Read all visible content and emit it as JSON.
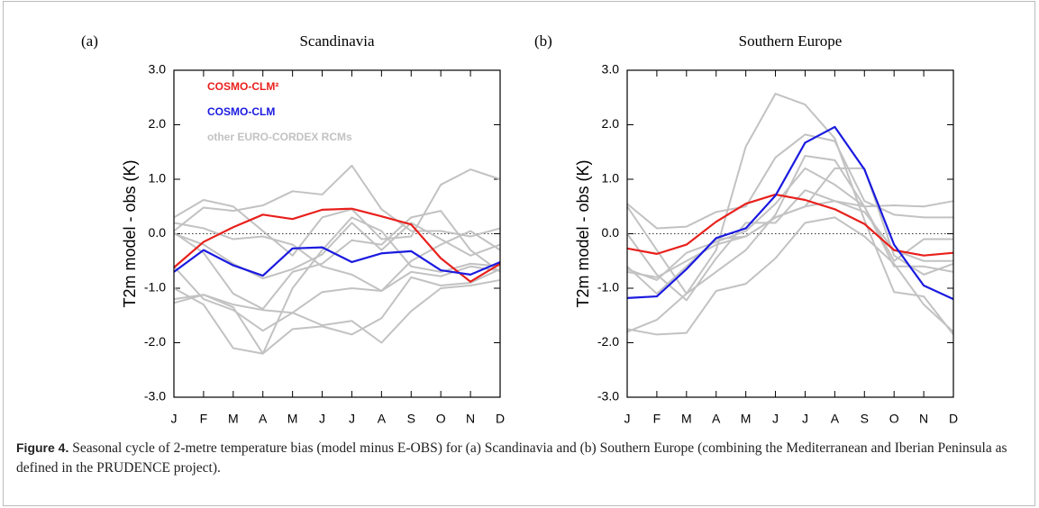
{
  "chart_data": [
    {
      "type": "line",
      "panel_label": "(a)",
      "title": "Scandinavia",
      "y_label": "T2m model - obs (K)",
      "categories": [
        "J",
        "F",
        "M",
        "A",
        "M",
        "J",
        "J",
        "A",
        "S",
        "O",
        "N",
        "D"
      ],
      "ylim": [
        -3,
        3
      ],
      "yticks": [
        {
          "value": -3,
          "label": "-3.0"
        },
        {
          "value": -2,
          "label": "-2.0"
        },
        {
          "value": -1,
          "label": "-1.0"
        },
        {
          "value": 0,
          "label": "0.0"
        },
        {
          "value": 1,
          "label": "1.0"
        },
        {
          "value": 2,
          "label": "2.0"
        },
        {
          "value": 3,
          "label": "3.0"
        }
      ],
      "series": [
        {
          "name": "COSMO-CLM²",
          "color": "#e8201c",
          "values": [
            -0.62,
            -0.15,
            0.12,
            0.35,
            0.27,
            0.44,
            0.46,
            0.32,
            0.17,
            -0.45,
            -0.88,
            -0.55
          ]
        },
        {
          "name": "COSMO-CLM",
          "color": "#1a1ae0",
          "values": [
            -0.7,
            -0.3,
            -0.58,
            -0.77,
            -0.27,
            -0.25,
            -0.52,
            -0.36,
            -0.32,
            -0.67,
            -0.75,
            -0.52
          ]
        },
        {
          "name": "other EURO-CORDEX RCMs",
          "color": "#c2c2c2",
          "lines": [
            [
              0.3,
              0.62,
              0.5,
              0.05,
              -0.4,
              0.3,
              0.45,
              -0.1,
              -0.05,
              0.9,
              1.18,
              1.0
            ],
            [
              0.05,
              0.48,
              0.42,
              0.52,
              0.78,
              0.72,
              1.25,
              0.45,
              0.05,
              0.05,
              -0.05,
              0.1
            ],
            [
              -1.27,
              -1.12,
              -1.3,
              -1.4,
              -1.45,
              -1.68,
              -1.6,
              -2.0,
              -1.42,
              -1.0,
              -0.95,
              -0.85
            ],
            [
              -1.0,
              -1.3,
              -2.1,
              -2.2,
              -1.75,
              -1.7,
              -1.85,
              -1.55,
              -0.8,
              -0.95,
              -0.9,
              -0.65
            ],
            [
              -0.6,
              -1.2,
              -1.4,
              -1.78,
              -1.45,
              -1.07,
              -1.0,
              -1.05,
              -0.7,
              -0.78,
              -0.6,
              -0.68
            ],
            [
              0.02,
              -0.35,
              -1.1,
              -1.38,
              -0.7,
              -0.55,
              -0.12,
              -0.2,
              0.3,
              0.42,
              -0.3,
              -0.7
            ],
            [
              0.0,
              -0.2,
              -0.55,
              -0.82,
              -0.65,
              -0.38,
              0.2,
              -0.3,
              0.2,
              -0.1,
              -0.4,
              -0.2
            ],
            [
              -1.2,
              -1.12,
              -1.35,
              -2.2,
              -1.0,
              -0.3,
              0.3,
              0.05,
              -0.6,
              -0.7,
              -0.55,
              -0.6
            ],
            [
              0.2,
              0.1,
              -0.1,
              -0.05,
              -0.2,
              -0.6,
              -0.75,
              -1.05,
              -0.5,
              -0.2,
              0.05,
              -0.3
            ]
          ]
        }
      ]
    },
    {
      "type": "line",
      "panel_label": "(b)",
      "title": "Southern Europe",
      "y_label": "T2m model - obs (K)",
      "categories": [
        "J",
        "F",
        "M",
        "A",
        "M",
        "J",
        "J",
        "A",
        "S",
        "O",
        "N",
        "D"
      ],
      "ylim": [
        -3,
        3
      ],
      "yticks": [
        {
          "value": -3,
          "label": "-3.0"
        },
        {
          "value": -2,
          "label": "-2.0"
        },
        {
          "value": -1,
          "label": "-1.0"
        },
        {
          "value": 0,
          "label": "0.0"
        },
        {
          "value": 1,
          "label": "1.0"
        },
        {
          "value": 2,
          "label": "2.0"
        },
        {
          "value": 3,
          "label": "3.0"
        }
      ],
      "series": [
        {
          "color": "#e8201c",
          "values": [
            -0.27,
            -0.37,
            -0.2,
            0.22,
            0.55,
            0.72,
            0.62,
            0.45,
            0.18,
            -0.3,
            -0.4,
            -0.35
          ]
        },
        {
          "color": "#1a1ae0",
          "values": [
            -1.18,
            -1.15,
            -0.65,
            -0.08,
            0.1,
            0.7,
            1.67,
            1.96,
            1.18,
            -0.2,
            -0.95,
            -1.2
          ]
        },
        {
          "color": "#c2c2c2",
          "lines": [
            [
              -1.8,
              -1.58,
              -1.1,
              -0.3,
              1.6,
              2.57,
              2.37,
              1.75,
              0.25,
              -1.07,
              -1.15,
              -1.85
            ],
            [
              0.55,
              0.1,
              0.13,
              0.4,
              0.5,
              1.4,
              1.82,
              1.7,
              0.6,
              0.35,
              0.3,
              0.3
            ],
            [
              -1.75,
              -1.85,
              -1.82,
              -1.05,
              -0.92,
              -0.45,
              0.2,
              0.3,
              -0.05,
              -0.55,
              -1.3,
              -1.8
            ],
            [
              0.5,
              -0.3,
              -1.1,
              -0.7,
              -0.3,
              0.35,
              1.43,
              1.35,
              0.5,
              0.52,
              0.5,
              0.6
            ],
            [
              -0.65,
              -0.85,
              -0.35,
              -0.15,
              0.05,
              0.55,
              1.2,
              0.9,
              0.5,
              -0.6,
              -0.6,
              -0.7
            ],
            [
              -0.7,
              -0.8,
              -0.5,
              -0.2,
              -0.05,
              0.3,
              0.5,
              1.2,
              1.2,
              -0.4,
              -0.75,
              -0.55
            ],
            [
              0.0,
              -0.75,
              -1.22,
              -0.45,
              0.2,
              0.2,
              0.8,
              0.6,
              0.5,
              -0.5,
              -0.1,
              -0.1
            ],
            [
              -0.6,
              -1.1,
              -0.6,
              -0.1,
              -0.05,
              0.3,
              0.5,
              0.6,
              0.4,
              -0.3,
              -0.5,
              -0.5
            ]
          ]
        }
      ]
    }
  ],
  "caption": {
    "label": "Figure 4.",
    "text": "Seasonal cycle of 2-metre temperature bias (model minus E-OBS) for (a) Scandinavia and (b) Southern Europe (combining the Mediterranean and Iberian Peninsula as defined in the PRUDENCE project)."
  }
}
